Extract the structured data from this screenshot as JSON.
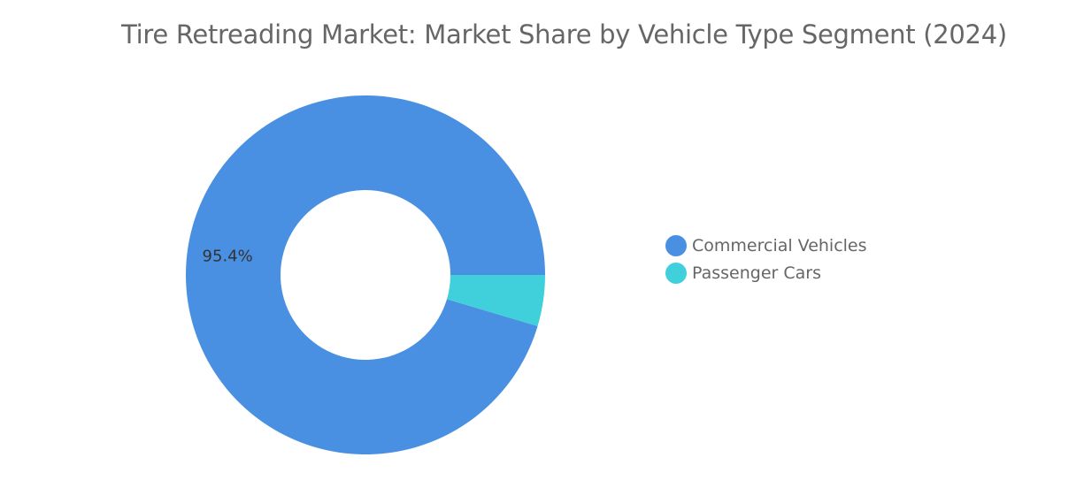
{
  "chart_data": {
    "type": "pie",
    "donut": true,
    "title": "Tire Retreading Market: Market Share by Vehicle Type Segment (2024)",
    "series": [
      {
        "name": "Commercial Vehicles",
        "value": 95.4,
        "color": "#4a90e2",
        "label": "95.4%"
      },
      {
        "name": "Passenger Cars",
        "value": 4.6,
        "color": "#40d0db",
        "label": ""
      }
    ],
    "legend": "right",
    "start_angle": "3 o'clock, counterclockwise"
  }
}
